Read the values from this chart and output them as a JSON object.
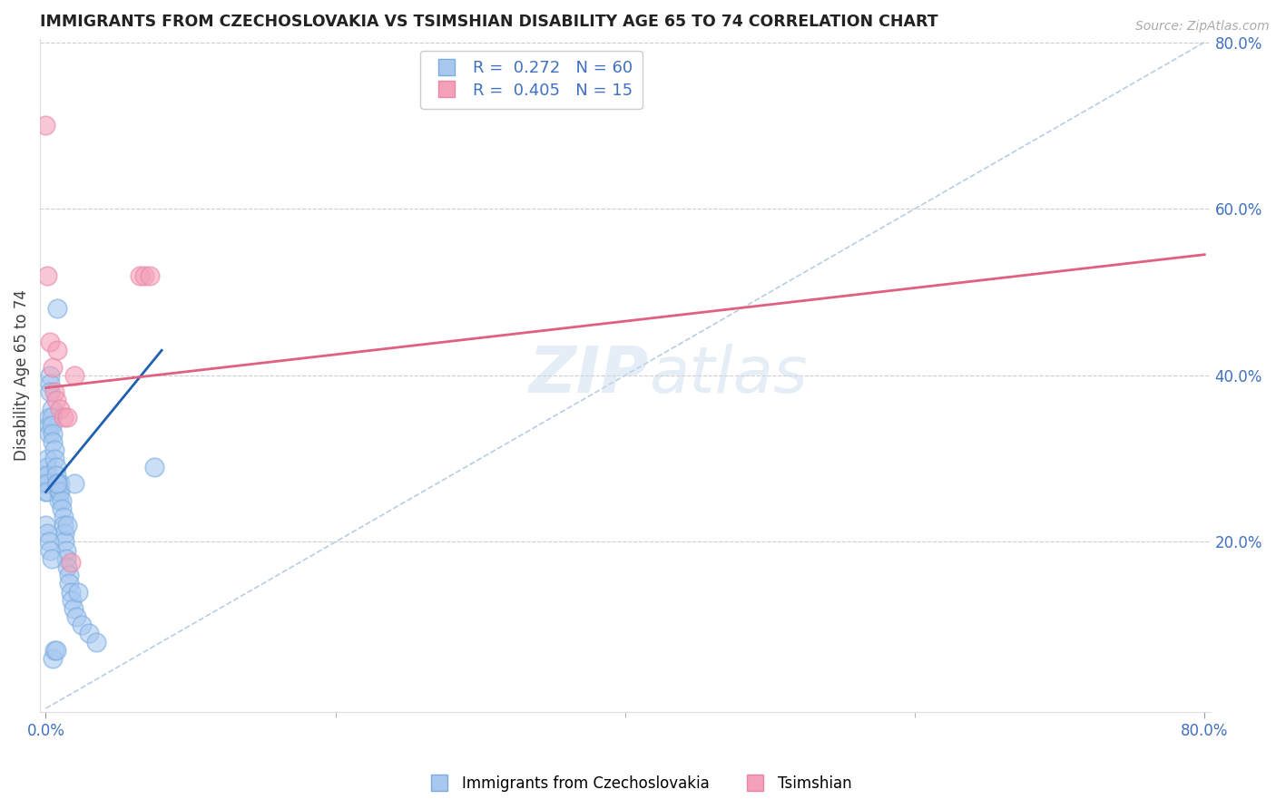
{
  "title": "IMMIGRANTS FROM CZECHOSLOVAKIA VS TSIMSHIAN DISABILITY AGE 65 TO 74 CORRELATION CHART",
  "source": "Source: ZipAtlas.com",
  "ylabel": "Disability Age 65 to 74",
  "xlim": [
    -0.004,
    0.804
  ],
  "ylim": [
    -0.004,
    0.804
  ],
  "xticks": [
    0.0,
    0.8
  ],
  "yticks_right": [
    0.2,
    0.4,
    0.6,
    0.8
  ],
  "xticklabels": [
    "0.0%",
    "80.0%"
  ],
  "yticklabels_right": [
    "20.0%",
    "40.0%",
    "60.0%",
    "80.0%"
  ],
  "blue_scatter_x": [
    0.0,
    0.0,
    0.0,
    0.001,
    0.001,
    0.001,
    0.001,
    0.001,
    0.002,
    0.002,
    0.002,
    0.003,
    0.003,
    0.003,
    0.004,
    0.004,
    0.004,
    0.005,
    0.005,
    0.006,
    0.006,
    0.007,
    0.007,
    0.008,
    0.008,
    0.009,
    0.009,
    0.01,
    0.01,
    0.011,
    0.011,
    0.012,
    0.012,
    0.013,
    0.013,
    0.014,
    0.014,
    0.015,
    0.015,
    0.016,
    0.016,
    0.017,
    0.018,
    0.019,
    0.02,
    0.021,
    0.022,
    0.025,
    0.03,
    0.035,
    0.0,
    0.001,
    0.002,
    0.003,
    0.004,
    0.005,
    0.006,
    0.007,
    0.008,
    0.075
  ],
  "blue_scatter_y": [
    0.28,
    0.27,
    0.26,
    0.3,
    0.29,
    0.28,
    0.27,
    0.26,
    0.35,
    0.34,
    0.33,
    0.4,
    0.39,
    0.38,
    0.36,
    0.35,
    0.34,
    0.33,
    0.32,
    0.31,
    0.3,
    0.29,
    0.28,
    0.48,
    0.27,
    0.26,
    0.25,
    0.27,
    0.26,
    0.25,
    0.24,
    0.23,
    0.22,
    0.21,
    0.2,
    0.19,
    0.18,
    0.22,
    0.17,
    0.16,
    0.15,
    0.14,
    0.13,
    0.12,
    0.27,
    0.11,
    0.14,
    0.1,
    0.09,
    0.08,
    0.22,
    0.21,
    0.2,
    0.19,
    0.18,
    0.06,
    0.07,
    0.07,
    0.27,
    0.29
  ],
  "pink_scatter_x": [
    0.0,
    0.001,
    0.003,
    0.005,
    0.006,
    0.007,
    0.008,
    0.01,
    0.012,
    0.015,
    0.017,
    0.02,
    0.065,
    0.068,
    0.072
  ],
  "pink_scatter_y": [
    0.7,
    0.52,
    0.44,
    0.41,
    0.38,
    0.37,
    0.43,
    0.36,
    0.35,
    0.35,
    0.175,
    0.4,
    0.52,
    0.52,
    0.52
  ],
  "blue_line_x": [
    0.0,
    0.08
  ],
  "blue_line_y": [
    0.26,
    0.43
  ],
  "pink_line_x": [
    0.0,
    0.8
  ],
  "pink_line_y": [
    0.385,
    0.545
  ],
  "dashed_line_x": [
    0.0,
    0.8
  ],
  "dashed_line_y": [
    0.0,
    0.8
  ],
  "blue_color": "#a8c8f0",
  "blue_edge_color": "#7aaddf",
  "pink_color": "#f4a0b8",
  "pink_edge_color": "#e888a8",
  "blue_line_color": "#2060b0",
  "pink_line_color": "#e06080",
  "dashed_color": "#b0c8e0",
  "axis_color": "#4070c0",
  "tick_color": "#999999",
  "watermark_color": "#ccddf0",
  "background_color": "#ffffff"
}
